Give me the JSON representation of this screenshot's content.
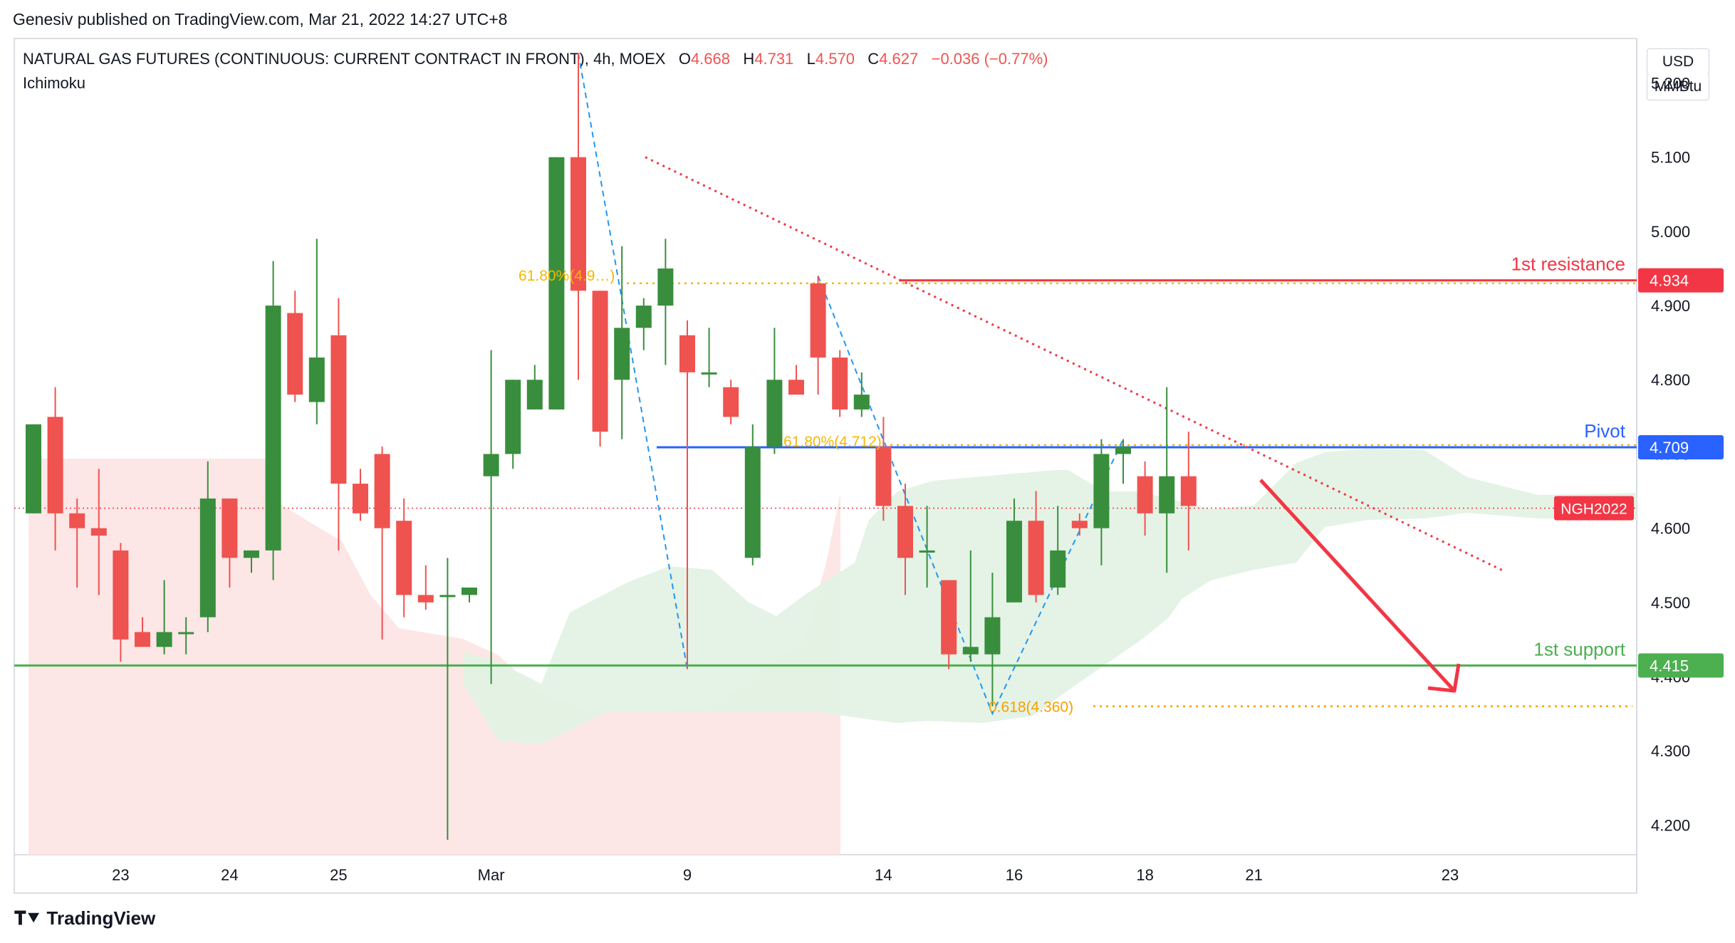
{
  "header": "Genesiv published on TradingView.com, Mar 21, 2022 14:27 UTC+8",
  "legend": {
    "symbol": "NATURAL GAS FUTURES (CONTINUOUS: CURRENT CONTRACT IN FRONT), 4h, MOEX",
    "o_label": "O",
    "o": "4.668",
    "h_label": "H",
    "h": "4.731",
    "l_label": "L",
    "l": "4.570",
    "c_label": "C",
    "c": "4.627",
    "change": "−0.036 (−0.77%)"
  },
  "indicator": "Ichimoku",
  "currency": "USD",
  "unit": "MMBtu",
  "footer": "TradingView",
  "chart_data": {
    "type": "candlestick",
    "ylim": [
      4.16,
      5.26
    ],
    "y_ticks": [
      4.2,
      4.3,
      4.4,
      4.5,
      4.6,
      4.7,
      4.8,
      4.9,
      5.0,
      5.1,
      5.2
    ],
    "y_tick_labels": [
      "4.200",
      "4.300",
      "4.400",
      "4.500",
      "4.600",
      "4.700",
      "4.800",
      "4.900",
      "5.000",
      "5.100",
      "5.200"
    ],
    "x_ticks": [
      {
        "label": "23",
        "i": 4
      },
      {
        "label": "24",
        "i": 9
      },
      {
        "label": "25",
        "i": 14
      },
      {
        "label": "Mar",
        "i": 21
      },
      {
        "label": "9",
        "i": 30
      },
      {
        "label": "14",
        "i": 39
      },
      {
        "label": "16",
        "i": 45
      },
      {
        "label": "18",
        "i": 51
      },
      {
        "label": "21",
        "i": 56
      },
      {
        "label": "23",
        "i": 65
      }
    ],
    "candles": [
      {
        "o": 4.62,
        "h": 4.74,
        "l": 4.62,
        "c": 4.74
      },
      {
        "o": 4.75,
        "h": 4.79,
        "l": 4.57,
        "c": 4.62
      },
      {
        "o": 4.62,
        "h": 4.64,
        "l": 4.52,
        "c": 4.6
      },
      {
        "o": 4.6,
        "h": 4.68,
        "l": 4.51,
        "c": 4.59
      },
      {
        "o": 4.57,
        "h": 4.58,
        "l": 4.42,
        "c": 4.45
      },
      {
        "o": 4.46,
        "h": 4.48,
        "l": 4.44,
        "c": 4.44
      },
      {
        "o": 4.44,
        "h": 4.53,
        "l": 4.43,
        "c": 4.46
      },
      {
        "o": 4.46,
        "h": 4.48,
        "l": 4.43,
        "c": 4.46
      },
      {
        "o": 4.48,
        "h": 4.69,
        "l": 4.46,
        "c": 4.64
      },
      {
        "o": 4.64,
        "h": 4.64,
        "l": 4.52,
        "c": 4.56
      },
      {
        "o": 4.56,
        "h": 4.57,
        "l": 4.54,
        "c": 4.57
      },
      {
        "o": 4.57,
        "h": 4.96,
        "l": 4.53,
        "c": 4.9
      },
      {
        "o": 4.89,
        "h": 4.92,
        "l": 4.77,
        "c": 4.78
      },
      {
        "o": 4.77,
        "h": 4.99,
        "l": 4.74,
        "c": 4.83
      },
      {
        "o": 4.86,
        "h": 4.91,
        "l": 4.57,
        "c": 4.66
      },
      {
        "o": 4.66,
        "h": 4.68,
        "l": 4.61,
        "c": 4.62
      },
      {
        "o": 4.7,
        "h": 4.71,
        "l": 4.45,
        "c": 4.6
      },
      {
        "o": 4.61,
        "h": 4.64,
        "l": 4.48,
        "c": 4.51
      },
      {
        "o": 4.51,
        "h": 4.55,
        "l": 4.49,
        "c": 4.5
      },
      {
        "o": 4.51,
        "h": 4.56,
        "l": 4.18,
        "c": 4.51
      },
      {
        "o": 4.51,
        "h": 4.52,
        "l": 4.5,
        "c": 4.52
      },
      {
        "o": 4.67,
        "h": 4.84,
        "l": 4.39,
        "c": 4.7
      },
      {
        "o": 4.7,
        "h": 4.8,
        "l": 4.68,
        "c": 4.8
      },
      {
        "o": 4.76,
        "h": 4.82,
        "l": 4.76,
        "c": 4.8
      },
      {
        "o": 4.76,
        "h": 5.1,
        "l": 4.76,
        "c": 5.1
      },
      {
        "o": 5.1,
        "h": 5.24,
        "l": 4.8,
        "c": 4.92
      },
      {
        "o": 4.92,
        "h": 4.92,
        "l": 4.71,
        "c": 4.73
      },
      {
        "o": 4.8,
        "h": 4.98,
        "l": 4.72,
        "c": 4.87
      },
      {
        "o": 4.87,
        "h": 4.91,
        "l": 4.84,
        "c": 4.9
      },
      {
        "o": 4.9,
        "h": 4.99,
        "l": 4.82,
        "c": 4.95
      },
      {
        "o": 4.86,
        "h": 4.88,
        "l": 4.41,
        "c": 4.81
      },
      {
        "o": 4.81,
        "h": 4.87,
        "l": 4.79,
        "c": 4.81
      },
      {
        "o": 4.79,
        "h": 4.8,
        "l": 4.74,
        "c": 4.75
      },
      {
        "o": 4.56,
        "h": 4.74,
        "l": 4.55,
        "c": 4.71
      },
      {
        "o": 4.71,
        "h": 4.87,
        "l": 4.7,
        "c": 4.8
      },
      {
        "o": 4.8,
        "h": 4.82,
        "l": 4.78,
        "c": 4.78
      },
      {
        "o": 4.93,
        "h": 4.94,
        "l": 4.78,
        "c": 4.83
      },
      {
        "o": 4.83,
        "h": 4.84,
        "l": 4.75,
        "c": 4.76
      },
      {
        "o": 4.76,
        "h": 4.81,
        "l": 4.75,
        "c": 4.78
      },
      {
        "o": 4.71,
        "h": 4.75,
        "l": 4.61,
        "c": 4.63
      },
      {
        "o": 4.63,
        "h": 4.66,
        "l": 4.51,
        "c": 4.56
      },
      {
        "o": 4.57,
        "h": 4.63,
        "l": 4.52,
        "c": 4.57
      },
      {
        "o": 4.53,
        "h": 4.53,
        "l": 4.41,
        "c": 4.43
      },
      {
        "o": 4.43,
        "h": 4.57,
        "l": 4.42,
        "c": 4.44
      },
      {
        "o": 4.43,
        "h": 4.54,
        "l": 4.36,
        "c": 4.48
      },
      {
        "o": 4.5,
        "h": 4.64,
        "l": 4.5,
        "c": 4.61
      },
      {
        "o": 4.61,
        "h": 4.65,
        "l": 4.5,
        "c": 4.51
      },
      {
        "o": 4.52,
        "h": 4.63,
        "l": 4.51,
        "c": 4.57
      },
      {
        "o": 4.61,
        "h": 4.62,
        "l": 4.59,
        "c": 4.6
      },
      {
        "o": 4.6,
        "h": 4.72,
        "l": 4.55,
        "c": 4.7
      },
      {
        "o": 4.7,
        "h": 4.72,
        "l": 4.66,
        "c": 4.71
      },
      {
        "o": 4.67,
        "h": 4.69,
        "l": 4.59,
        "c": 4.62
      },
      {
        "o": 4.62,
        "h": 4.79,
        "l": 4.54,
        "c": 4.67
      },
      {
        "o": 4.67,
        "h": 4.73,
        "l": 4.57,
        "c": 4.63
      }
    ],
    "levels": [
      {
        "name": "1st resistance",
        "value": 4.934,
        "label": "4.934",
        "color": "#f23645"
      },
      {
        "name": "Pivot",
        "value": 4.709,
        "label": "4.709",
        "color": "#2962ff"
      },
      {
        "name": "1st support",
        "value": 4.415,
        "label": "4.415",
        "color": "#4caf50"
      }
    ],
    "current_price": {
      "value": 4.627,
      "label": "NGH2022",
      "color": "#f23645"
    },
    "fib_annotations": [
      {
        "label": "61.80%(4.9…)",
        "value": 4.93,
        "color": "#f5b700"
      },
      {
        "label": "61.80%(4.712)",
        "value": 4.712,
        "color": "#f5b700"
      },
      {
        "label": "0.618(4.360)",
        "value": 4.36,
        "color": "#f5a100"
      }
    ],
    "colors": {
      "up": "#388e3c",
      "down": "#ef5350",
      "cloud_bull": "#e3f2e4",
      "cloud_bear": "#fde3e3"
    }
  }
}
